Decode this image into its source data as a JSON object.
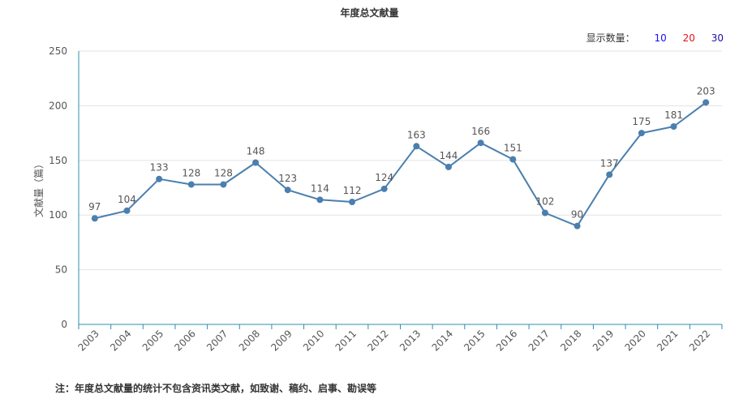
{
  "title": "年度总文献量",
  "display_count": {
    "label": "显示数量：",
    "options": [
      "10",
      "20",
      "30"
    ],
    "option_colors": [
      "#1a0dff",
      "#e8111a",
      "#1a0dab"
    ]
  },
  "footnote": "注：年度总文献量的统计不包含资讯类文献，如致谢、稿约、启事、勘误等",
  "colors": {
    "line": "#4a7fae",
    "axis": "#2d8fa8",
    "grid": "#e3e3e3"
  },
  "chart_data": {
    "type": "line",
    "title": "年度总文献量",
    "xlabel": "",
    "ylabel": "文献量（篇）",
    "ylim": [
      0,
      250
    ],
    "yticks": [
      0,
      50,
      100,
      150,
      200,
      250
    ],
    "categories": [
      "2003",
      "2004",
      "2005",
      "2006",
      "2007",
      "2008",
      "2009",
      "2010",
      "2011",
      "2012",
      "2013",
      "2014",
      "2015",
      "2016",
      "2017",
      "2018",
      "2019",
      "2020",
      "2021",
      "2022"
    ],
    "values": [
      97,
      104,
      133,
      128,
      128,
      148,
      123,
      114,
      112,
      124,
      163,
      144,
      166,
      151,
      102,
      90,
      137,
      175,
      181,
      203
    ],
    "grid": true,
    "data_labels": true
  }
}
